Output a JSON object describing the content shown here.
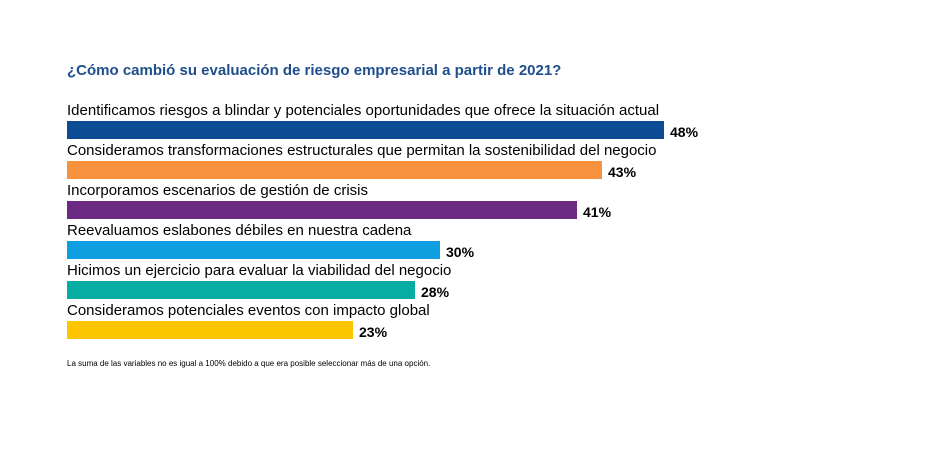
{
  "chart_data": {
    "type": "bar",
    "orientation": "horizontal",
    "title": "¿Cómo cambió su evaluación de riesgo empresarial a partir de 2021?",
    "categories": [
      "Identificamos riesgos a blindar y potenciales oportunidades que ofrece la situación actual",
      "Consideramos transformaciones estructurales que permitan la sostenibilidad del negocio",
      "Incorporamos escenarios de gestión de crisis",
      "Reevaluamos eslabones débiles en nuestra cadena",
      "Hicimos un ejercicio para evaluar la viabilidad del negocio",
      "Consideramos potenciales eventos con impacto global"
    ],
    "values": [
      48,
      43,
      41,
      30,
      28,
      23
    ],
    "value_labels": [
      "48%",
      "43%",
      "41%",
      "30%",
      "28%",
      "23%"
    ],
    "colors": [
      "#0b4c95",
      "#f7913d",
      "#6d2a82",
      "#0f9ee0",
      "#07ada2",
      "#fcc500"
    ],
    "xlim": [
      0,
      48
    ],
    "xlabel": "",
    "ylabel": "",
    "grid": false,
    "legend": "none",
    "footnote": "La suma de las variables no es igual a 100% debido a que era posible seleccionar más de una opción."
  }
}
